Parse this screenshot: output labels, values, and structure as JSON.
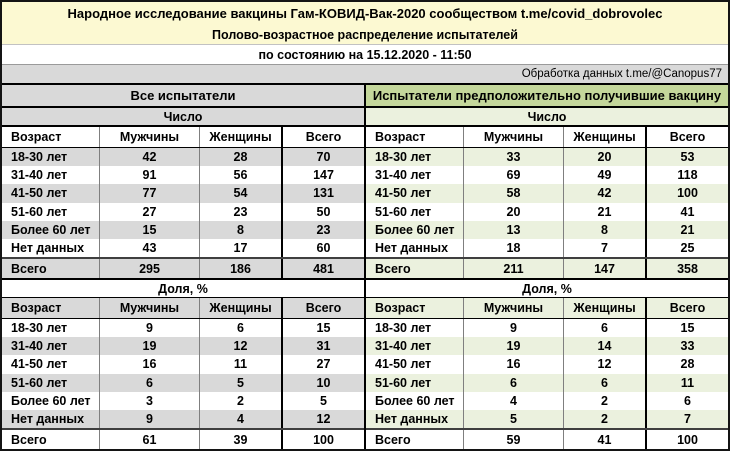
{
  "header": {
    "title_line1": "Народное исследование вакцины Гам-КОВИД-Вак-2020 сообществом t.me/covid_dobrovolec",
    "title_line2": "Полово-возрастное распределение испытателей",
    "title_line3": "по состоянию на 15.12.2020 - 11:50",
    "credit": "Обработка данных t.me/@Canopus77"
  },
  "columns": [
    "Возраст",
    "Мужчины",
    "Женщины",
    "Всего"
  ],
  "sections": [
    {
      "title": "Все испытатели",
      "theme": "gray",
      "blocks": [
        {
          "label": "Число",
          "rows": [
            [
              "18-30 лет",
              "42",
              "28",
              "70"
            ],
            [
              "31-40 лет",
              "91",
              "56",
              "147"
            ],
            [
              "41-50 лет",
              "77",
              "54",
              "131"
            ],
            [
              "51-60 лет",
              "27",
              "23",
              "50"
            ],
            [
              "Более 60 лет",
              "15",
              "8",
              "23"
            ],
            [
              "Нет данных",
              "43",
              "17",
              "60"
            ]
          ],
          "total": [
            "Всего",
            "295",
            "186",
            "481"
          ]
        },
        {
          "label": "Доля, %",
          "rows": [
            [
              "18-30 лет",
              "9",
              "6",
              "15"
            ],
            [
              "31-40 лет",
              "19",
              "12",
              "31"
            ],
            [
              "41-50 лет",
              "16",
              "11",
              "27"
            ],
            [
              "51-60 лет",
              "6",
              "5",
              "10"
            ],
            [
              "Более 60 лет",
              "3",
              "2",
              "5"
            ],
            [
              "Нет данных",
              "9",
              "4",
              "12"
            ]
          ],
          "total": [
            "Всего",
            "61",
            "39",
            "100"
          ]
        }
      ]
    },
    {
      "title": "Испытатели предположительно получившие вакцину",
      "theme": "green",
      "blocks": [
        {
          "label": "Число",
          "rows": [
            [
              "18-30 лет",
              "33",
              "20",
              "53"
            ],
            [
              "31-40 лет",
              "69",
              "49",
              "118"
            ],
            [
              "41-50 лет",
              "58",
              "42",
              "100"
            ],
            [
              "51-60 лет",
              "20",
              "21",
              "41"
            ],
            [
              "Более 60 лет",
              "13",
              "8",
              "21"
            ],
            [
              "Нет данных",
              "18",
              "7",
              "25"
            ]
          ],
          "total": [
            "Всего",
            "211",
            "147",
            "358"
          ]
        },
        {
          "label": "Доля, %",
          "rows": [
            [
              "18-30 лет",
              "9",
              "6",
              "15"
            ],
            [
              "31-40 лет",
              "19",
              "14",
              "33"
            ],
            [
              "41-50 лет",
              "16",
              "12",
              "28"
            ],
            [
              "51-60 лет",
              "6",
              "6",
              "11"
            ],
            [
              "Более 60 лет",
              "4",
              "2",
              "6"
            ],
            [
              "Нет данных",
              "5",
              "2",
              "7"
            ]
          ],
          "total": [
            "Всего",
            "59",
            "41",
            "100"
          ]
        }
      ]
    }
  ],
  "colors": {
    "title_bg": "#fcf9d2",
    "credit_bg": "#d9d9d9",
    "gray_fill": "#d9d9d9",
    "green_header_fill": "#c4d79b",
    "green_band_fill": "#ebf1de",
    "grid_line": "#7f7f7f",
    "border_dark": "#000000"
  },
  "chart_data": [
    {
      "type": "table",
      "title": "Все испытатели — Число",
      "columns": [
        "Возраст",
        "Мужчины",
        "Женщины",
        "Всего"
      ],
      "rows": [
        [
          "18-30 лет",
          42,
          28,
          70
        ],
        [
          "31-40 лет",
          91,
          56,
          147
        ],
        [
          "41-50 лет",
          77,
          54,
          131
        ],
        [
          "51-60 лет",
          27,
          23,
          50
        ],
        [
          "Более 60 лет",
          15,
          8,
          23
        ],
        [
          "Нет данных",
          43,
          17,
          60
        ],
        [
          "Всего",
          295,
          186,
          481
        ]
      ]
    },
    {
      "type": "table",
      "title": "Все испытатели — Доля, %",
      "columns": [
        "Возраст",
        "Мужчины",
        "Женщины",
        "Всего"
      ],
      "rows": [
        [
          "18-30 лет",
          9,
          6,
          15
        ],
        [
          "31-40 лет",
          19,
          12,
          31
        ],
        [
          "41-50 лет",
          16,
          11,
          27
        ],
        [
          "51-60 лет",
          6,
          5,
          10
        ],
        [
          "Более 60 лет",
          3,
          2,
          5
        ],
        [
          "Нет данных",
          9,
          4,
          12
        ],
        [
          "Всего",
          61,
          39,
          100
        ]
      ]
    },
    {
      "type": "table",
      "title": "Испытатели предположительно получившие вакцину — Число",
      "columns": [
        "Возраст",
        "Мужчины",
        "Женщины",
        "Всего"
      ],
      "rows": [
        [
          "18-30 лет",
          33,
          20,
          53
        ],
        [
          "31-40 лет",
          69,
          49,
          118
        ],
        [
          "41-50 лет",
          58,
          42,
          100
        ],
        [
          "51-60 лет",
          20,
          21,
          41
        ],
        [
          "Более 60 лет",
          13,
          8,
          21
        ],
        [
          "Нет данных",
          18,
          7,
          25
        ],
        [
          "Всего",
          211,
          147,
          358
        ]
      ]
    },
    {
      "type": "table",
      "title": "Испытатели предположительно получившие вакцину — Доля, %",
      "columns": [
        "Возраст",
        "Мужчины",
        "Женщины",
        "Всего"
      ],
      "rows": [
        [
          "18-30 лет",
          9,
          6,
          15
        ],
        [
          "31-40 лет",
          19,
          14,
          33
        ],
        [
          "41-50 лет",
          16,
          12,
          28
        ],
        [
          "51-60 лет",
          6,
          6,
          11
        ],
        [
          "Более 60 лет",
          4,
          2,
          6
        ],
        [
          "Нет данных",
          5,
          2,
          7
        ],
        [
          "Всего",
          59,
          41,
          100
        ]
      ]
    }
  ]
}
